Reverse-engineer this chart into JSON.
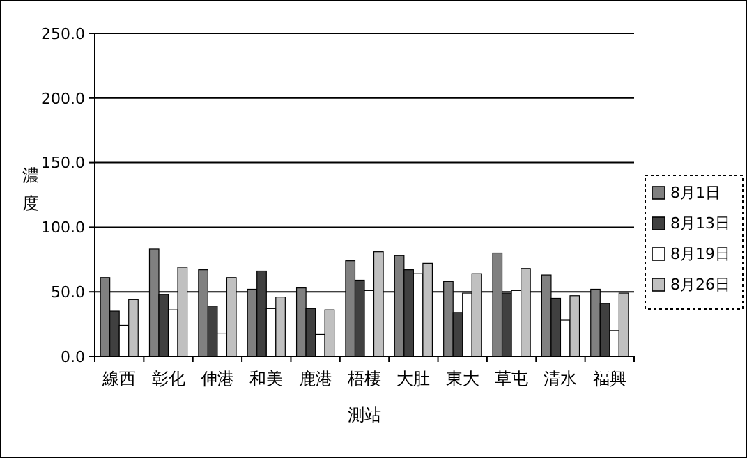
{
  "chart_data": {
    "type": "bar",
    "xlabel": "測站",
    "ylabel": "濃度",
    "categories": [
      "線西",
      "彰化",
      "伸港",
      "和美",
      "鹿港",
      "梧棲",
      "大肚",
      "東大",
      "草屯",
      "清水",
      "福興"
    ],
    "series": [
      {
        "name": "8月1日",
        "color": "#808080",
        "values": [
          61,
          83,
          67,
          52,
          53,
          74,
          78,
          58,
          80,
          63,
          52
        ]
      },
      {
        "name": "8月13日",
        "color": "#404040",
        "values": [
          35,
          48,
          39,
          66,
          37,
          59,
          67,
          34,
          49,
          45,
          41
        ]
      },
      {
        "name": "8月19日",
        "color": "#ffffff",
        "values": [
          24,
          36,
          18,
          37,
          17,
          51,
          64,
          49,
          51,
          28,
          20
        ]
      },
      {
        "name": "8月26日",
        "color": "#c0c0c0",
        "values": [
          44,
          69,
          61,
          46,
          36,
          81,
          72,
          64,
          68,
          47,
          49
        ]
      }
    ],
    "ylim": [
      0,
      250
    ],
    "yticks": [
      {
        "value": 0,
        "label": "0.0"
      },
      {
        "value": 50,
        "label": "50.0"
      },
      {
        "value": 100,
        "label": "100.0"
      },
      {
        "value": 150,
        "label": "150.0"
      },
      {
        "value": 200,
        "label": "200.0"
      },
      {
        "value": 250,
        "label": "250.0"
      }
    ],
    "grid": "y",
    "legend": "right"
  }
}
